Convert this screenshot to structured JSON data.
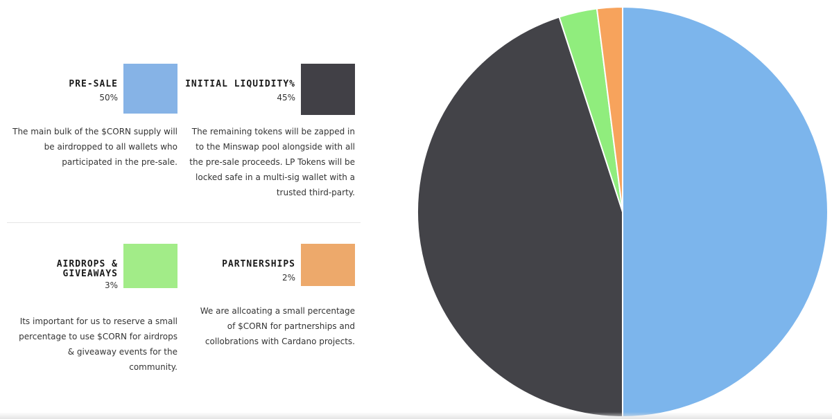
{
  "cards": [
    {
      "title": "PRE-SALE",
      "percent": "50%",
      "color": "#86b3e6",
      "description": "The main bulk of the $CORN supply will be airdropped to all wallets who participated in the pre-sale."
    },
    {
      "title": "INITIAL LIQUIDITY%",
      "percent": "45%",
      "color": "#414046",
      "description": "The remaining tokens will be zapped in to the Minswap pool alongside with all the pre-sale proceeds. LP Tokens will be locked safe in a multi-sig wallet with a trusted third-party."
    },
    {
      "title": "AIRDROPS &\nGIVEAWAYS",
      "percent": "3%",
      "color": "#a2ec88",
      "description": "Its important for us to reserve a small percentage to use $CORN for airdrops & giveaway events for the community."
    },
    {
      "title": "PARTNERSHIPS",
      "percent": "2%",
      "color": "#eda96b",
      "description": "We are allcoating a small percentage of $CORN for partnerships and collobrations with Cardano projects."
    }
  ],
  "chart_data": {
    "type": "pie",
    "slices": [
      {
        "label": "PRE-SALE",
        "value": 50,
        "color": "#7cb5ec"
      },
      {
        "label": "INITIAL LIQUIDITY%",
        "value": 45,
        "color": "#434348"
      },
      {
        "label": "AIRDROPS & GIVEAWAYS",
        "value": 3,
        "color": "#90ed7d"
      },
      {
        "label": "PARTNERSHIPS",
        "value": 2,
        "color": "#f7a35c"
      }
    ],
    "start_angle": "12 o'clock",
    "direction": "clockwise",
    "legend": "none"
  }
}
